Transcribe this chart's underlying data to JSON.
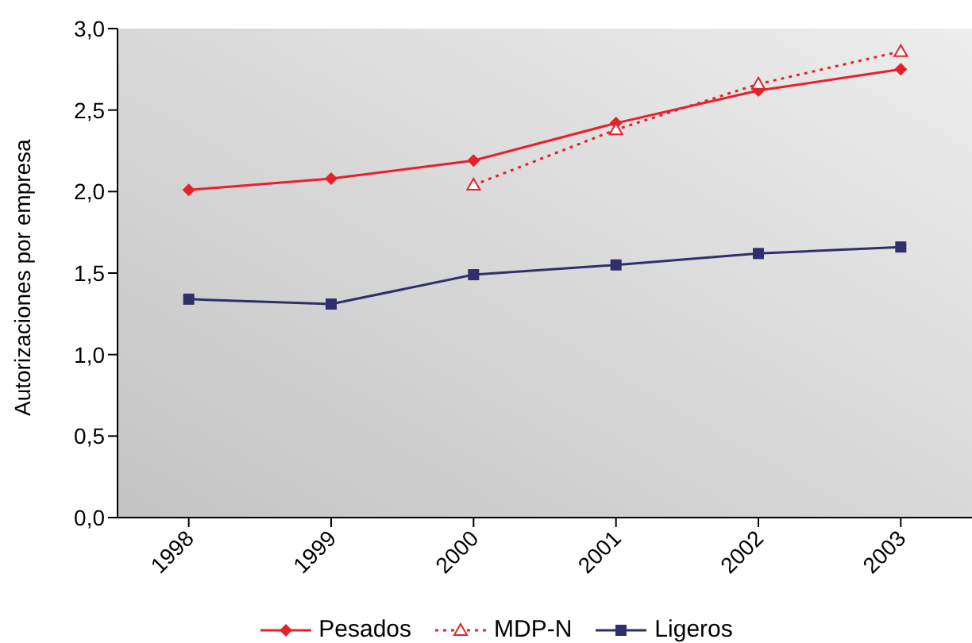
{
  "chart_data": {
    "type": "line",
    "ylabel": "Autorizaciones por empresa",
    "categories": [
      "1998",
      "1999",
      "2000",
      "2001",
      "2002",
      "2003"
    ],
    "series": [
      {
        "name": "Pesados",
        "color": "#e8202a",
        "values": [
          2.01,
          2.08,
          2.19,
          2.42,
          2.62,
          2.75
        ],
        "marker": "diamond",
        "line_style": "solid"
      },
      {
        "name": "MDP-N",
        "color": "#e8202a",
        "values": [
          null,
          null,
          2.04,
          2.38,
          2.66,
          2.86
        ],
        "marker": "triangle",
        "line_style": "dotted"
      },
      {
        "name": "Ligeros",
        "color": "#2e2f6b",
        "values": [
          1.34,
          1.31,
          1.49,
          1.55,
          1.62,
          1.66
        ],
        "marker": "square",
        "line_style": "solid"
      }
    ],
    "ylim": [
      0,
      3
    ],
    "yticks": [
      {
        "value": 0,
        "label": "0,0"
      },
      {
        "value": 0.5,
        "label": "0,5"
      },
      {
        "value": 1,
        "label": "1,0"
      },
      {
        "value": 1.5,
        "label": "1,5"
      },
      {
        "value": 2,
        "label": "2,0"
      },
      {
        "value": 2.5,
        "label": "2,5"
      },
      {
        "value": 3,
        "label": "3,0"
      }
    ],
    "grid": false,
    "legend": "bottom"
  }
}
